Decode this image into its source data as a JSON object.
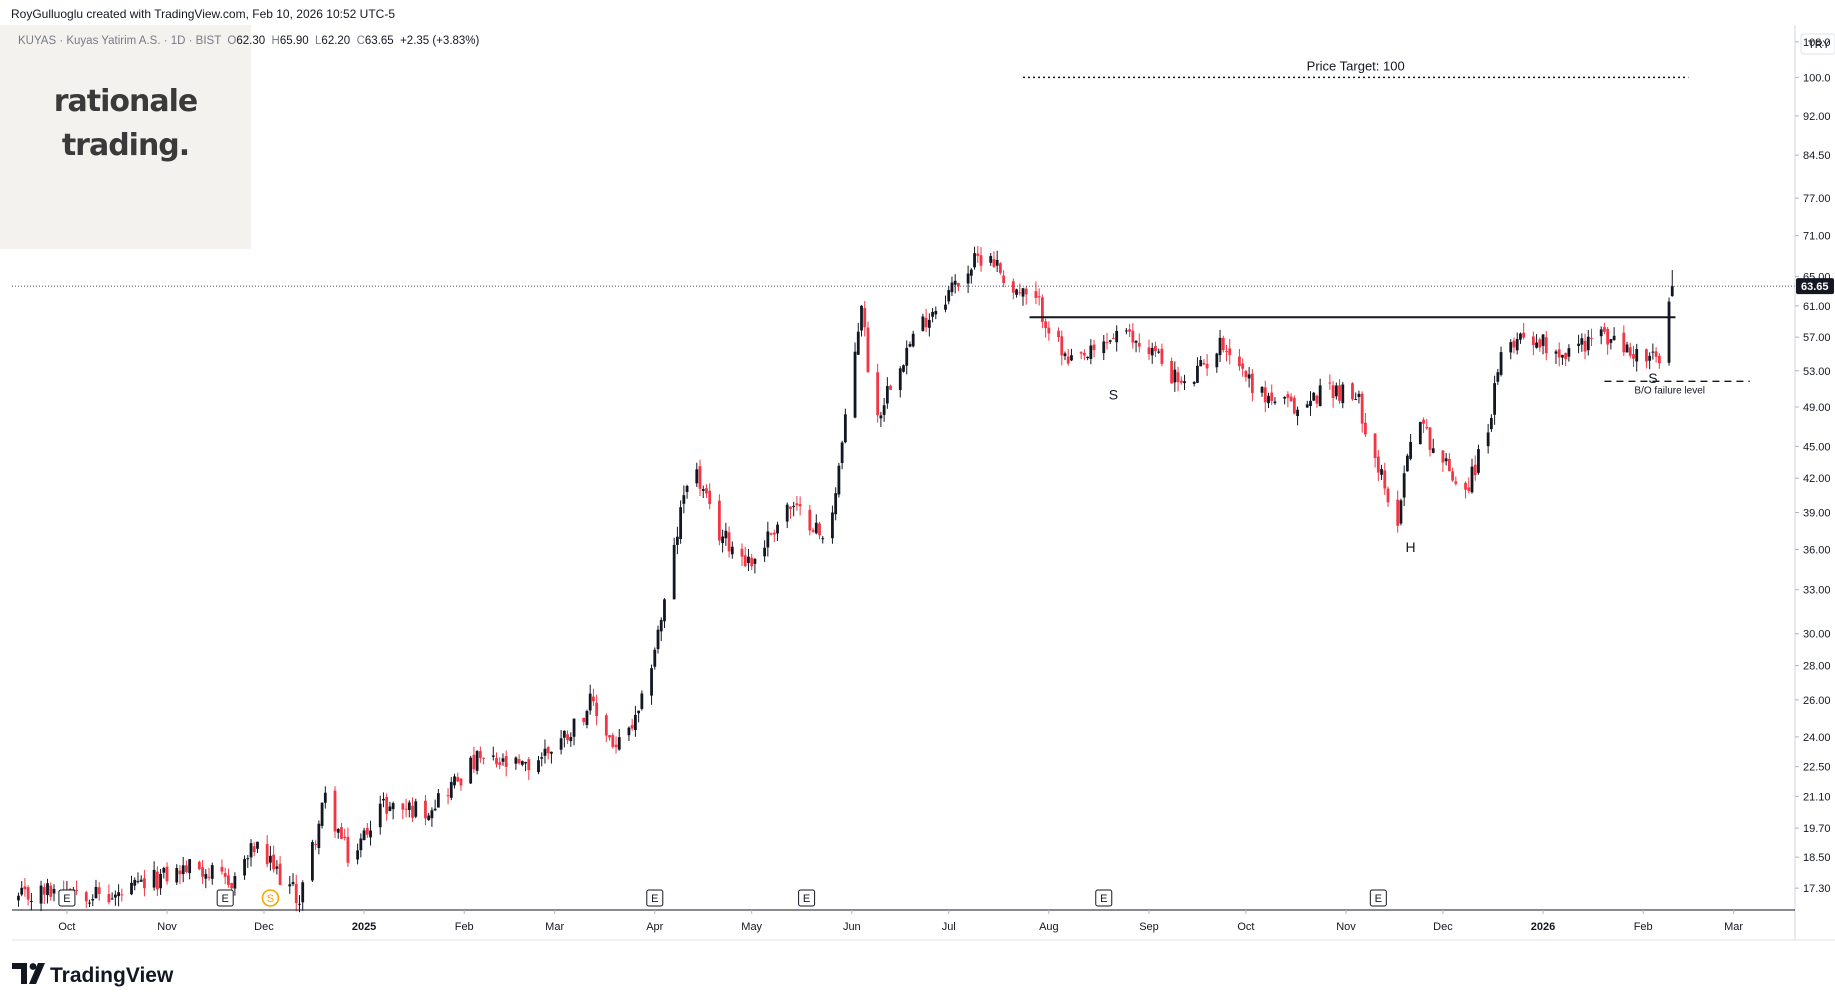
{
  "header": {
    "credit": "RoyGulluoglu created with TradingView.com, Feb 10, 2026 10:52 UTC-5"
  },
  "legend": {
    "symbol": "KUYAS · Kuyas Yatirim A.S. · 1D · BIST",
    "o_label": "O",
    "o": "62.30",
    "h_label": "H",
    "h": "65.90",
    "l_label": "L",
    "l": "62.20",
    "c_label": "C",
    "c": "63.65",
    "change": "+2.35 (+3.83%)"
  },
  "brand": {
    "line1": "rationale",
    "line2": "trading."
  },
  "footer": {
    "logo_text": "TradingView"
  },
  "colors": {
    "up": "#131722",
    "down": "#f23645",
    "grid": "#e9e9ec",
    "axis_text": "#131722"
  },
  "chart_data": {
    "type": "candlestick",
    "scale": "log",
    "currency": "TRY",
    "ylim": [
      16.5,
      112
    ],
    "y_ticks": [
      "17.30",
      "18.50",
      "19.70",
      "21.10",
      "22.50",
      "24.00",
      "26.00",
      "28.00",
      "30.00",
      "33.00",
      "36.00",
      "39.00",
      "42.00",
      "45.00",
      "49.00",
      "53.00",
      "57.00",
      "61.00",
      "65.00",
      "71.00",
      "77.00",
      "84.50",
      "92.00",
      "100.0",
      "108.0"
    ],
    "x_ticks": [
      {
        "label": "Oct",
        "date": "2024-10-01"
      },
      {
        "label": "Nov",
        "date": "2024-11-01"
      },
      {
        "label": "Dec",
        "date": "2024-12-01"
      },
      {
        "label": "2025",
        "date": "2025-01-01"
      },
      {
        "label": "Feb",
        "date": "2025-02-01"
      },
      {
        "label": "Mar",
        "date": "2025-03-01"
      },
      {
        "label": "Apr",
        "date": "2025-04-01"
      },
      {
        "label": "May",
        "date": "2025-05-01"
      },
      {
        "label": "Jun",
        "date": "2025-06-01"
      },
      {
        "label": "Jul",
        "date": "2025-07-01"
      },
      {
        "label": "Aug",
        "date": "2025-08-01"
      },
      {
        "label": "Sep",
        "date": "2025-09-01"
      },
      {
        "label": "Oct",
        "date": "2025-10-01"
      },
      {
        "label": "Nov",
        "date": "2025-11-01"
      },
      {
        "label": "Dec",
        "date": "2025-12-01"
      },
      {
        "label": "2026",
        "date": "2026-01-01"
      },
      {
        "label": "Feb",
        "date": "2026-02-01"
      },
      {
        "label": "Mar",
        "date": "2026-03-01"
      }
    ],
    "x_range": [
      "2024-09-14",
      "2026-03-20"
    ],
    "last_price": "63.65",
    "price_path": [
      [
        "2024-09-16",
        16.9
      ],
      [
        "2024-10-01",
        17.4
      ],
      [
        "2024-10-15",
        16.9
      ],
      [
        "2024-10-28",
        17.6
      ],
      [
        "2024-11-10",
        18.2
      ],
      [
        "2024-11-20",
        17.4
      ],
      [
        "2024-11-28",
        18.9
      ],
      [
        "2024-12-05",
        17.9
      ],
      [
        "2024-12-12",
        16.9
      ],
      [
        "2024-12-20",
        21.0
      ],
      [
        "2024-12-28",
        18.2
      ],
      [
        "2025-01-05",
        20.7
      ],
      [
        "2025-01-20",
        20.5
      ],
      [
        "2025-02-05",
        22.8
      ],
      [
        "2025-02-20",
        22.4
      ],
      [
        "2025-03-05",
        24.2
      ],
      [
        "2025-03-12",
        25.8
      ],
      [
        "2025-03-20",
        23.4
      ],
      [
        "2025-03-27",
        25.0
      ],
      [
        "2025-04-05",
        33.0
      ],
      [
        "2025-04-12",
        44.0
      ],
      [
        "2025-04-20",
        37.5
      ],
      [
        "2025-05-01",
        35.0
      ],
      [
        "2025-05-12",
        39.5
      ],
      [
        "2025-05-20",
        38.2
      ],
      [
        "2025-05-24",
        36.0
      ],
      [
        "2025-05-31",
        49.5
      ],
      [
        "2025-06-04",
        61.5
      ],
      [
        "2025-06-08",
        47.0
      ],
      [
        "2025-06-14",
        53.0
      ],
      [
        "2025-06-24",
        59.5
      ],
      [
        "2025-07-06",
        65.5
      ],
      [
        "2025-07-13",
        69.0
      ],
      [
        "2025-07-20",
        63.5
      ],
      [
        "2025-07-29",
        61.0
      ],
      [
        "2025-08-07",
        53.5
      ],
      [
        "2025-08-15",
        55.0
      ],
      [
        "2025-08-22",
        57.5
      ],
      [
        "2025-09-02",
        55.5
      ],
      [
        "2025-09-12",
        51.0
      ],
      [
        "2025-09-24",
        56.5
      ],
      [
        "2025-10-05",
        50.5
      ],
      [
        "2025-10-18",
        48.5
      ],
      [
        "2025-10-26",
        51.5
      ],
      [
        "2025-11-05",
        49.5
      ],
      [
        "2025-11-12",
        42.0
      ],
      [
        "2025-11-16",
        37.0
      ],
      [
        "2025-11-22",
        48.5
      ],
      [
        "2025-12-01",
        43.5
      ],
      [
        "2025-12-08",
        41.0
      ],
      [
        "2025-12-14",
        45.5
      ],
      [
        "2025-12-20",
        56.0
      ],
      [
        "2025-12-26",
        57.5
      ],
      [
        "2026-01-08",
        55.0
      ],
      [
        "2026-01-18",
        57.5
      ],
      [
        "2026-01-29",
        55.0
      ],
      [
        "2026-02-06",
        54.0
      ],
      [
        "2026-02-10",
        63.65
      ]
    ],
    "annotations": [
      {
        "type": "hline",
        "style": "dotted",
        "y": 100,
        "x_from": "2025-07-24",
        "x_to": "2026-02-15",
        "label": "Price Target: 100"
      },
      {
        "type": "hline",
        "style": "solid",
        "y": 59.5,
        "x_from": "2025-07-26",
        "x_to": "2026-02-11",
        "label": ""
      },
      {
        "type": "hline",
        "style": "dashed",
        "y": 51.8,
        "x_from": "2026-01-20",
        "x_to": "2026-03-06",
        "label": "B/O failure level"
      },
      {
        "type": "text",
        "label": "S",
        "date": "2025-08-21",
        "y": 49.8
      },
      {
        "type": "text",
        "label": "S",
        "date": "2026-02-04",
        "y": 51.6
      },
      {
        "type": "text",
        "label": "H",
        "date": "2025-11-21",
        "y": 35.8
      }
    ],
    "events": [
      {
        "label": "E",
        "date": "2024-10-01"
      },
      {
        "label": "E",
        "date": "2024-11-19"
      },
      {
        "label": "S",
        "date": "2024-12-03",
        "kind": "split"
      },
      {
        "label": "E",
        "date": "2025-04-01"
      },
      {
        "label": "E",
        "date": "2025-05-18"
      },
      {
        "label": "E",
        "date": "2025-08-18"
      },
      {
        "label": "E",
        "date": "2025-11-11"
      }
    ]
  }
}
